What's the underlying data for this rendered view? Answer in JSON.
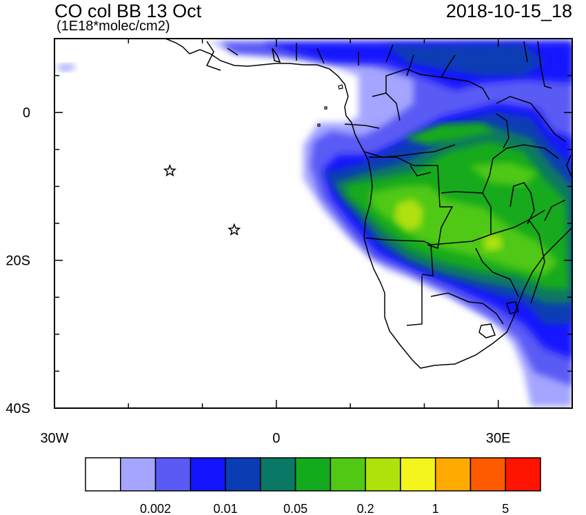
{
  "header": {
    "title": "CO col BB 13 Oct",
    "subtitle": "(1E18*molec/cm2)",
    "timestamp": "2018-10-15_18"
  },
  "map": {
    "lon_range": [
      -30,
      40
    ],
    "lat_range": [
      -40,
      10
    ],
    "lon_ticks": [
      {
        "value": -30,
        "label": "30W"
      },
      {
        "value": 0,
        "label": "0"
      },
      {
        "value": 30,
        "label": "30E"
      }
    ],
    "lat_ticks": [
      {
        "value": 0,
        "label": "0"
      },
      {
        "value": -20,
        "label": "20S"
      },
      {
        "value": -40,
        "label": "40S"
      }
    ],
    "markers": [
      {
        "name": "star-marker",
        "lon": -14.4,
        "lat": -7.9
      },
      {
        "name": "star-marker",
        "lon": -5.7,
        "lat": -15.9
      }
    ]
  },
  "colorbar": {
    "colors": [
      "#ffffff",
      "#a5a5ff",
      "#5a5af5",
      "#1414ff",
      "#0a3cb4",
      "#0a7864",
      "#14aa1e",
      "#50c814",
      "#afe10a",
      "#f5f51e",
      "#ffaa00",
      "#ff5a00",
      "#ff1400"
    ],
    "labels": [
      "0.002",
      "0.01",
      "0.05",
      "0.2",
      "1",
      "5"
    ]
  }
}
